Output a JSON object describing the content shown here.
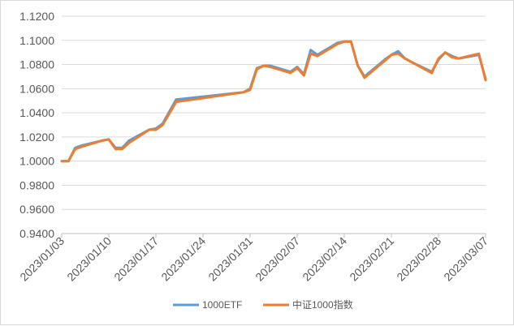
{
  "chart_data": {
    "type": "line",
    "title": "",
    "xlabel": "",
    "ylabel": "",
    "ylim": [
      0.94,
      1.12
    ],
    "yticks": [
      "1.1200",
      "1.1000",
      "1.0800",
      "1.0600",
      "1.0400",
      "1.0200",
      "1.0000",
      "0.9800",
      "0.9600",
      "0.9400"
    ],
    "xlim": [
      "2023-01-03",
      "2023-03-07"
    ],
    "xticks": [
      "2023/01/03",
      "2023/01/10",
      "2023/01/17",
      "2023/01/24",
      "2023/01/31",
      "2023/02/07",
      "2023/02/14",
      "2023/02/21",
      "2023/02/28",
      "2023/03/07"
    ],
    "grid": "horizontal",
    "legend_position": "bottom",
    "series": [
      {
        "name": "1000ETF",
        "color": "#5B9BD5",
        "points": [
          [
            "2023-01-03",
            1.0
          ],
          [
            "2023-01-04",
            1.0
          ],
          [
            "2023-01-05",
            1.011
          ],
          [
            "2023-01-06",
            1.013
          ],
          [
            "2023-01-09",
            1.017
          ],
          [
            "2023-01-10",
            1.018
          ],
          [
            "2023-01-11",
            1.011
          ],
          [
            "2023-01-12",
            1.011
          ],
          [
            "2023-01-13",
            1.017
          ],
          [
            "2023-01-16",
            1.026
          ],
          [
            "2023-01-17",
            1.027
          ],
          [
            "2023-01-18",
            1.031
          ],
          [
            "2023-01-20",
            1.051
          ],
          [
            "2023-01-30",
            1.057
          ],
          [
            "2023-01-31",
            1.06
          ],
          [
            "2023-02-01",
            1.077
          ],
          [
            "2023-02-02",
            1.079
          ],
          [
            "2023-02-03",
            1.079
          ],
          [
            "2023-02-06",
            1.074
          ],
          [
            "2023-02-07",
            1.078
          ],
          [
            "2023-02-08",
            1.072
          ],
          [
            "2023-02-09",
            1.092
          ],
          [
            "2023-02-10",
            1.088
          ],
          [
            "2023-02-13",
            1.098
          ],
          [
            "2023-02-14",
            1.099
          ],
          [
            "2023-02-15",
            1.099
          ],
          [
            "2023-02-16",
            1.079
          ],
          [
            "2023-02-17",
            1.07
          ],
          [
            "2023-02-20",
            1.084
          ],
          [
            "2023-02-21",
            1.088
          ],
          [
            "2023-02-22",
            1.091
          ],
          [
            "2023-02-23",
            1.085
          ],
          [
            "2023-02-24",
            1.082
          ],
          [
            "2023-02-27",
            1.074
          ],
          [
            "2023-02-28",
            1.084
          ],
          [
            "2023-03-01",
            1.09
          ],
          [
            "2023-03-02",
            1.087
          ],
          [
            "2023-03-03",
            1.085
          ],
          [
            "2023-03-06",
            1.088
          ],
          [
            "2023-03-07",
            1.068
          ]
        ]
      },
      {
        "name": "中证1000指数",
        "color": "#ED7D31",
        "points": [
          [
            "2023-01-03",
            1.0
          ],
          [
            "2023-01-04",
            1.0
          ],
          [
            "2023-01-05",
            1.01
          ],
          [
            "2023-01-06",
            1.012
          ],
          [
            "2023-01-09",
            1.017
          ],
          [
            "2023-01-10",
            1.018
          ],
          [
            "2023-01-11",
            1.01
          ],
          [
            "2023-01-12",
            1.01
          ],
          [
            "2023-01-13",
            1.015
          ],
          [
            "2023-01-16",
            1.026
          ],
          [
            "2023-01-17",
            1.026
          ],
          [
            "2023-01-18",
            1.03
          ],
          [
            "2023-01-20",
            1.049
          ],
          [
            "2023-01-30",
            1.057
          ],
          [
            "2023-01-31",
            1.059
          ],
          [
            "2023-02-01",
            1.076
          ],
          [
            "2023-02-02",
            1.079
          ],
          [
            "2023-02-03",
            1.078
          ],
          [
            "2023-02-06",
            1.073
          ],
          [
            "2023-02-07",
            1.077
          ],
          [
            "2023-02-08",
            1.071
          ],
          [
            "2023-02-09",
            1.089
          ],
          [
            "2023-02-10",
            1.087
          ],
          [
            "2023-02-13",
            1.097
          ],
          [
            "2023-02-14",
            1.099
          ],
          [
            "2023-02-15",
            1.099
          ],
          [
            "2023-02-16",
            1.079
          ],
          [
            "2023-02-17",
            1.069
          ],
          [
            "2023-02-20",
            1.083
          ],
          [
            "2023-02-21",
            1.088
          ],
          [
            "2023-02-22",
            1.089
          ],
          [
            "2023-02-23",
            1.085
          ],
          [
            "2023-02-24",
            1.082
          ],
          [
            "2023-02-27",
            1.073
          ],
          [
            "2023-02-28",
            1.085
          ],
          [
            "2023-03-01",
            1.09
          ],
          [
            "2023-03-02",
            1.086
          ],
          [
            "2023-03-03",
            1.085
          ],
          [
            "2023-03-06",
            1.089
          ],
          [
            "2023-03-07",
            1.067
          ]
        ]
      }
    ]
  }
}
